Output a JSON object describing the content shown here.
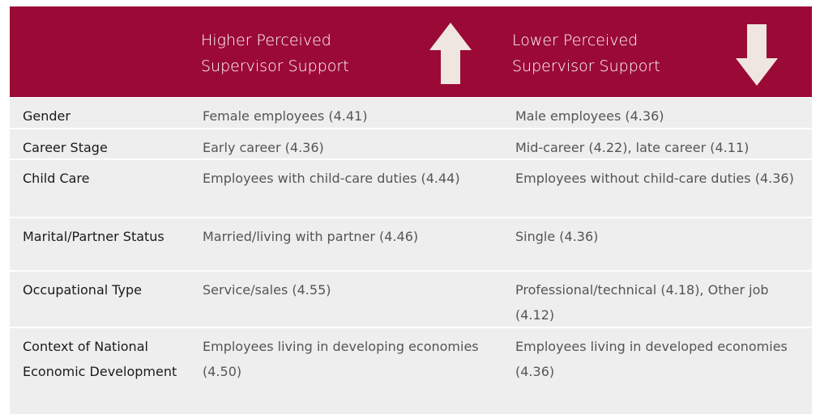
{
  "header": {
    "columns": [
      "",
      "Higher Perceived Supervisor Support",
      "Lower Perceived Supervisor Support"
    ]
  },
  "table": {
    "rows": [
      [
        "Gender",
        "Female employees (4.41)",
        "Male employees (4.36)"
      ],
      [
        "Career Stage",
        "Early career (4.36)",
        "Mid-career (4.22), late career (4.11)"
      ],
      [
        "Child Care",
        "Employees with child-care duties (4.44)",
        "Employees without child-care duties (4.36)"
      ],
      [
        "Marital/Partner Status",
        "Married/living with partner (4.46)",
        "Single (4.36)"
      ],
      [
        "Occupational Type",
        "Service/sales (4.55)",
        "Professional/technical (4.18), Other job (4.12)"
      ],
      [
        "Context of National Economic Development",
        "Employees living in developing economies (4.50)",
        "Employees living in developed economies (4.36)"
      ]
    ]
  }
}
